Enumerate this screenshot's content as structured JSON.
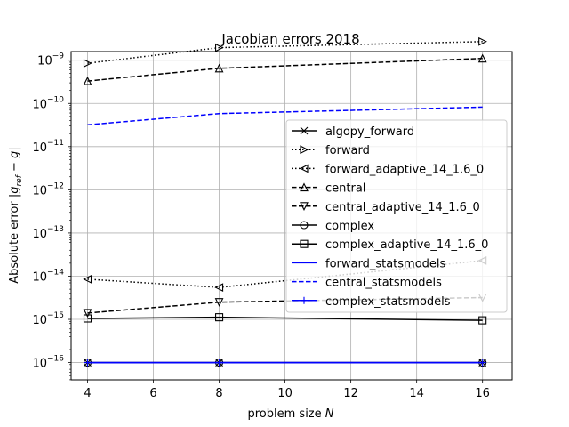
{
  "chart_data": {
    "type": "line",
    "title": "Jacobian errors 2018",
    "xlabel": "problem size N",
    "ylabel": "Absolute error |g_ref - g|",
    "x": [
      4,
      8,
      16
    ],
    "xlim": [
      3.5,
      16.9
    ],
    "xticks": [
      4,
      6,
      8,
      10,
      12,
      14,
      16
    ],
    "ylim_log10": [
      -16.4,
      -8.8
    ],
    "yscale": "log",
    "yticks_exp": [
      -16,
      -15,
      -14,
      -13,
      -12,
      -11,
      -10,
      -9
    ],
    "grid": true,
    "legend_position": "center-right",
    "series": [
      {
        "name": "algopy_forward",
        "values": [
          1e-16,
          1e-16,
          1e-16
        ],
        "color": "#000000",
        "dash": "solid",
        "marker": "x"
      },
      {
        "name": "forward",
        "values": [
          8.5e-10,
          1.95e-09,
          2.7e-09
        ],
        "color": "#000000",
        "dash": "dotted",
        "marker": "tri-right"
      },
      {
        "name": "forward_adaptive_14_1.6_0",
        "values": [
          8.5e-15,
          5.5e-15,
          2.3e-14
        ],
        "color": "#000000",
        "dash": "dotted",
        "marker": "tri-left"
      },
      {
        "name": "central",
        "values": [
          3.3e-10,
          6.5e-10,
          1.1e-09
        ],
        "color": "#000000",
        "dash": "dashed",
        "marker": "tri-up"
      },
      {
        "name": "central_adaptive_14_1.6_0",
        "values": [
          1.4e-15,
          2.5e-15,
          3.2e-15
        ],
        "color": "#000000",
        "dash": "dashed",
        "marker": "tri-down"
      },
      {
        "name": "complex",
        "values": [
          1e-16,
          1e-16,
          1e-16
        ],
        "color": "#000000",
        "dash": "solid",
        "marker": "circle"
      },
      {
        "name": "complex_adaptive_14_1.6_0",
        "values": [
          1.05e-15,
          1.12e-15,
          9.5e-16
        ],
        "color": "#000000",
        "dash": "solid",
        "marker": "square"
      },
      {
        "name": "forward_statsmodels",
        "values": [
          1e-16,
          1e-16,
          1e-16
        ],
        "color": "#0000ff",
        "dash": "solid",
        "marker": "none"
      },
      {
        "name": "central_statsmodels",
        "values": [
          3.2e-11,
          5.8e-11,
          8.2e-11
        ],
        "color": "#0000ff",
        "dash": "dashed",
        "marker": "none"
      },
      {
        "name": "complex_statsmodels",
        "values": [
          1e-16,
          1e-16,
          1e-16
        ],
        "color": "#0000ff",
        "dash": "solid",
        "marker": "plus"
      }
    ]
  }
}
